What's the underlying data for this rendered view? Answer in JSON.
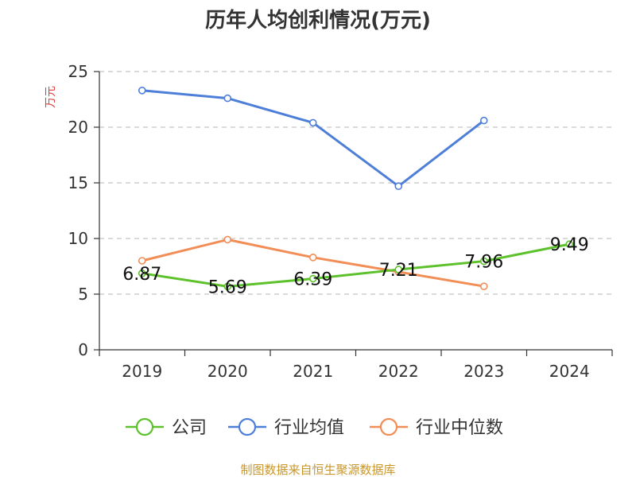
{
  "chart_data": {
    "type": "line",
    "title": "历年人均创利情况(万元)",
    "ylabel": "万元",
    "xlabel": "",
    "categories": [
      "2019",
      "2020",
      "2021",
      "2022",
      "2023",
      "2024"
    ],
    "ylim": [
      0,
      25
    ],
    "yticks": [
      0,
      5,
      10,
      15,
      20,
      25
    ],
    "grid": true,
    "legend_position": "bottom",
    "series": [
      {
        "name": "公司",
        "color": "#5cc12b",
        "values": [
          6.87,
          5.69,
          6.39,
          7.21,
          7.96,
          9.49
        ],
        "labels": [
          "6.87",
          "5.69",
          "6.39",
          "7.21",
          "7.96",
          "9.49"
        ]
      },
      {
        "name": "行业均值",
        "color": "#4e7fd8",
        "values": [
          23.3,
          22.6,
          20.4,
          14.7,
          20.6,
          null
        ]
      },
      {
        "name": "行业中位数",
        "color": "#f28d56",
        "values": [
          8.0,
          9.9,
          8.3,
          7.0,
          5.7,
          null
        ]
      }
    ]
  },
  "source": "制图数据来自恒生聚源数据库"
}
